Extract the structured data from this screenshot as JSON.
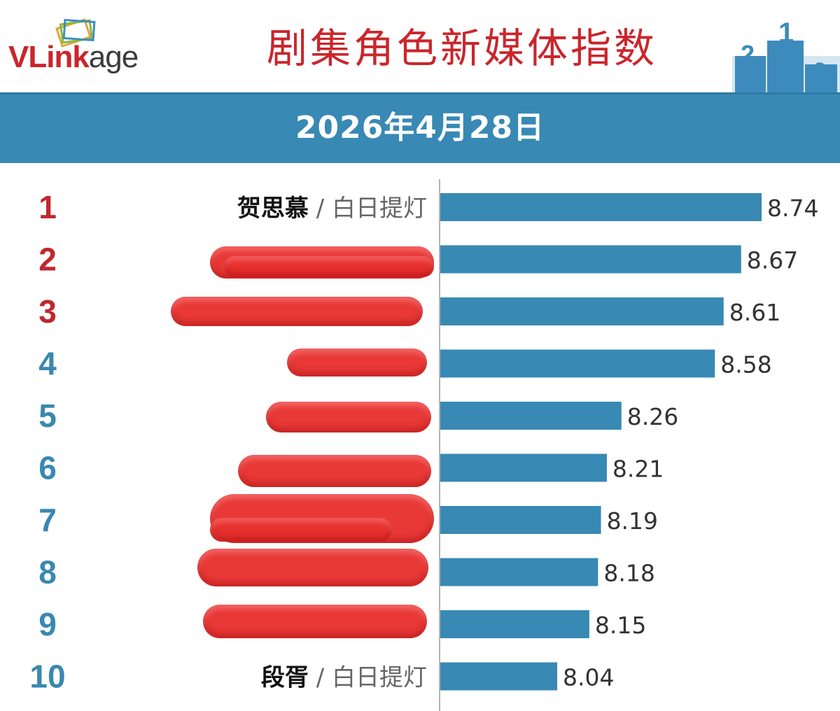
{
  "header": {
    "logo_text_left": "VLink",
    "logo_text_right": "age",
    "title": "剧集角色新媒体指数",
    "date": "2026年4月28日",
    "podium_numbers": [
      "2",
      "1",
      "3"
    ]
  },
  "colors": {
    "bar": "#3889b4",
    "band": "#3889b4",
    "title": "#c9262c",
    "rank_top3": "#c0272d",
    "rank_rest": "#3a88b0",
    "redaction": "#e8312f"
  },
  "chart_data": {
    "type": "bar",
    "orientation": "horizontal",
    "ranks": [
      "1",
      "2",
      "3",
      "4",
      "5",
      "6",
      "7",
      "8",
      "9",
      "10"
    ],
    "character_names": [
      "贺思慕",
      "",
      "",
      "",
      "",
      "",
      "",
      "",
      "",
      "段胥"
    ],
    "drama_names": [
      "白日提灯",
      "",
      "",
      "",
      "",
      "",
      "",
      "",
      "",
      "白日提灯"
    ],
    "separator": "/",
    "values": [
      8.74,
      8.67,
      8.61,
      8.58,
      8.26,
      8.21,
      8.19,
      8.18,
      8.15,
      8.04
    ],
    "value_labels": [
      "8.74",
      "8.67",
      "8.61",
      "8.58",
      "8.26",
      "8.21",
      "8.19",
      "8.18",
      "8.15",
      "8.04"
    ],
    "redacted_rows": [
      2,
      3,
      4,
      5,
      6,
      7,
      8,
      9
    ],
    "grid": false,
    "legend": "none"
  }
}
